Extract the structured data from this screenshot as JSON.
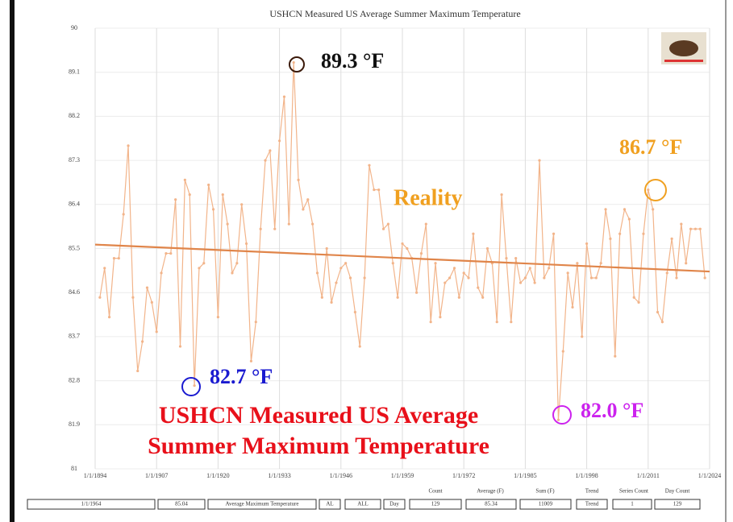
{
  "chart_data": {
    "type": "line",
    "title": "USHCN Measured US Average Summer Maximum Temperature",
    "x": [
      1895,
      1896,
      1897,
      1898,
      1899,
      1900,
      1901,
      1902,
      1903,
      1904,
      1905,
      1906,
      1907,
      1908,
      1909,
      1910,
      1911,
      1912,
      1913,
      1914,
      1915,
      1916,
      1917,
      1918,
      1919,
      1920,
      1921,
      1922,
      1923,
      1924,
      1925,
      1926,
      1927,
      1928,
      1929,
      1930,
      1931,
      1932,
      1933,
      1934,
      1935,
      1936,
      1937,
      1938,
      1939,
      1940,
      1941,
      1942,
      1943,
      1944,
      1945,
      1946,
      1947,
      1948,
      1949,
      1950,
      1951,
      1952,
      1953,
      1954,
      1955,
      1956,
      1957,
      1958,
      1959,
      1960,
      1961,
      1962,
      1963,
      1964,
      1965,
      1966,
      1967,
      1968,
      1969,
      1970,
      1971,
      1972,
      1973,
      1974,
      1975,
      1976,
      1977,
      1978,
      1979,
      1980,
      1981,
      1982,
      1983,
      1984,
      1985,
      1986,
      1987,
      1988,
      1989,
      1990,
      1991,
      1992,
      1993,
      1994,
      1995,
      1996,
      1997,
      1998,
      1999,
      2000,
      2001,
      2002,
      2003,
      2004,
      2005,
      2006,
      2007,
      2008,
      2009,
      2010,
      2011,
      2012,
      2013,
      2014,
      2015,
      2016,
      2017,
      2018,
      2019,
      2020,
      2021,
      2022,
      2023
    ],
    "series": [
      {
        "color": "#f2b48a",
        "values": [
          84.5,
          85.1,
          84.1,
          85.3,
          85.3,
          86.2,
          87.6,
          84.5,
          83.0,
          83.6,
          84.7,
          84.4,
          83.8,
          85.0,
          85.4,
          85.4,
          86.5,
          83.5,
          86.9,
          86.6,
          82.7,
          85.1,
          85.2,
          86.8,
          86.3,
          84.1,
          86.6,
          86.0,
          85.0,
          85.2,
          86.4,
          85.6,
          83.2,
          84.0,
          85.9,
          87.3,
          87.5,
          85.9,
          87.7,
          88.6,
          86.0,
          89.3,
          86.9,
          86.3,
          86.5,
          86.0,
          85.0,
          84.5,
          85.5,
          84.4,
          84.8,
          85.1,
          85.2,
          84.9,
          84.2,
          83.5,
          84.9,
          87.2,
          86.7,
          86.7,
          85.9,
          86.0,
          85.2,
          84.5,
          85.6,
          85.5,
          85.3,
          84.6,
          85.4,
          86.0,
          84.0,
          85.2,
          84.1,
          84.8,
          84.9,
          85.1,
          84.5,
          85.0,
          84.9,
          85.8,
          84.7,
          84.5,
          85.5,
          85.2,
          84.0,
          86.6,
          85.3,
          84.0,
          85.3,
          84.8,
          84.9,
          85.1,
          84.8,
          87.3,
          84.9,
          85.1,
          85.8,
          82.0,
          83.4,
          85.0,
          84.3,
          85.2,
          83.7,
          85.6,
          84.9,
          84.9,
          85.2,
          86.3,
          85.7,
          83.3,
          85.8,
          86.3,
          86.1,
          84.5,
          84.4,
          85.8,
          86.7,
          86.3,
          84.2,
          84.0,
          85.0,
          85.7,
          84.9,
          86.0,
          85.2,
          85.9,
          85.9,
          85.9,
          84.9
        ]
      }
    ],
    "trend_line": {
      "color": "#e0854a",
      "x": [
        1894,
        2024
      ],
      "values": [
        85.58,
        85.03
      ]
    },
    "xlim": [
      1894,
      2024
    ],
    "xticks": [
      {
        "value": 1894,
        "label": "1/1/1894"
      },
      {
        "value": 1907,
        "label": "1/1/1907"
      },
      {
        "value": 1920,
        "label": "1/1/1920"
      },
      {
        "value": 1933,
        "label": "1/1/1933"
      },
      {
        "value": 1946,
        "label": "1/1/1946"
      },
      {
        "value": 1959,
        "label": "1/1/1959"
      },
      {
        "value": 1972,
        "label": "1/1/1972"
      },
      {
        "value": 1985,
        "label": "1/1/1985"
      },
      {
        "value": 1998,
        "label": "1/1/1998"
      },
      {
        "value": 2011,
        "label": "1/1/2011"
      },
      {
        "value": 2024,
        "label": "1/1/2024"
      }
    ],
    "ylim": [
      81,
      90
    ],
    "yticks": [
      81,
      81.9,
      82.8,
      83.7,
      84.6,
      85.5,
      86.4,
      87.3,
      88.2,
      89.1,
      90
    ],
    "grid": true,
    "annotations": [
      "89.3 °F",
      "86.7 °F",
      "Reality",
      "82.7 °F",
      "82.0 °F"
    ],
    "overlay_title": [
      "USHCN Measured US Average",
      "Summer Maximum Temperature"
    ]
  },
  "controls": {
    "fields": [
      "1/1/1964",
      "85.04",
      "Average Maximum Temperature",
      "AL",
      "ALL",
      "Day",
      "129",
      "85.34",
      "11009",
      "Trend",
      "1",
      "129"
    ],
    "headers": [
      "Count",
      "Average (F)",
      "Sum (F)",
      "Trend",
      "Series Count",
      "Day Count"
    ]
  }
}
